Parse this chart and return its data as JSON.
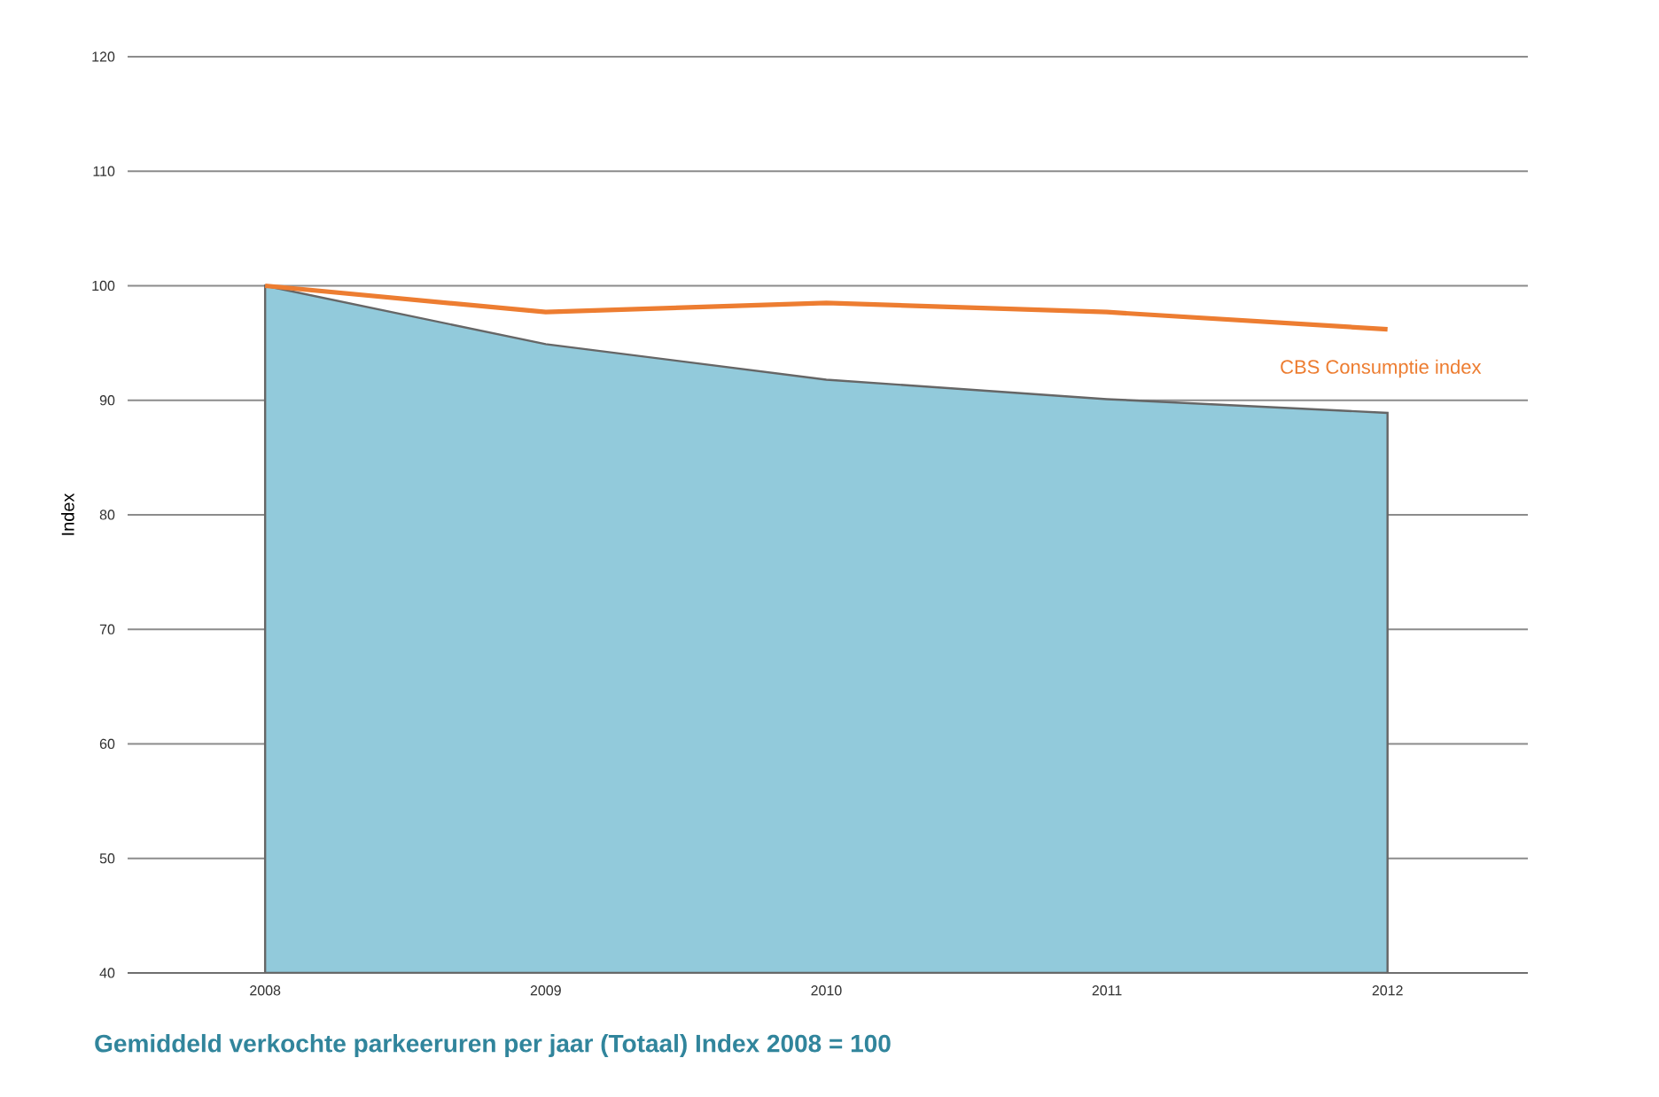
{
  "chart_data": {
    "type": "area",
    "title": "Gemiddeld  verkochte parkeeruren per jaar (Totaal) Index 2008 = 100",
    "ylabel": "Index",
    "categories": [
      "2008",
      "2009",
      "2010",
      "2011",
      "2012"
    ],
    "series": [
      {
        "color": "#92cadb",
        "values": [
          100,
          94.9,
          91.8,
          90.1,
          88.9
        ]
      },
      {
        "type": "line",
        "name": "CBS Consumptie index",
        "color": "#ed7d31",
        "values": [
          100,
          97.7,
          98.5,
          97.7,
          96.2
        ]
      }
    ],
    "ylim": [
      40,
      120
    ],
    "yticks": [
      40,
      50,
      60,
      70,
      80,
      90,
      100,
      110,
      120
    ],
    "grid": "y"
  }
}
